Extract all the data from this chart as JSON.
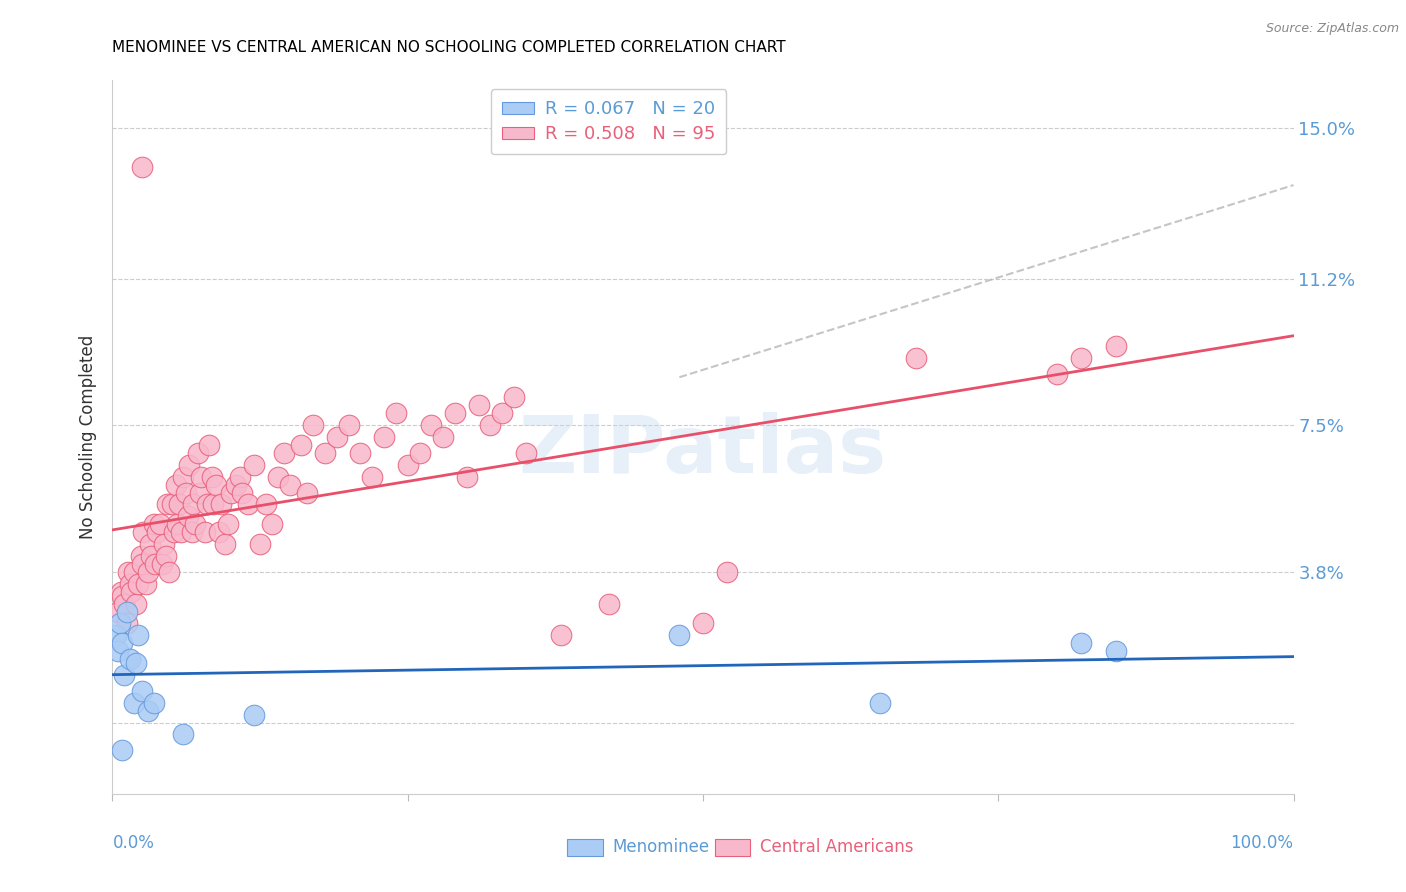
{
  "title": "MENOMINEE VS CENTRAL AMERICAN NO SCHOOLING COMPLETED CORRELATION CHART",
  "source": "Source: ZipAtlas.com",
  "ylabel": "No Schooling Completed",
  "xlim": [
    0.0,
    1.0
  ],
  "ylim": [
    -0.018,
    0.162
  ],
  "yticks": [
    0.0,
    0.038,
    0.075,
    0.112,
    0.15
  ],
  "ytick_labels": [
    "",
    "3.8%",
    "7.5%",
    "11.2%",
    "15.0%"
  ],
  "menominee_color": "#aaccf5",
  "menominee_edge": "#6699dd",
  "central_color": "#f8b8cc",
  "central_edge": "#e8607a",
  "reg_menominee_color": "#2266bb",
  "reg_central_color": "#e8506a",
  "dash_color": "#bbbbbb",
  "legend_text_color": "#5b9bd5",
  "legend_central_color": "#e8607a",
  "legend_label_menominee": "Menominee",
  "legend_label_central": "Central Americans",
  "watermark": "ZIPatlas",
  "menominee_x": [
    0.003,
    0.005,
    0.006,
    0.008,
    0.01,
    0.012,
    0.015,
    0.018,
    0.02,
    0.022,
    0.025,
    0.03,
    0.06,
    0.12,
    0.48,
    0.82,
    0.85,
    0.65,
    0.008,
    0.035
  ],
  "menominee_y": [
    0.022,
    0.018,
    0.025,
    0.02,
    0.012,
    0.028,
    0.016,
    0.005,
    0.015,
    0.022,
    0.008,
    0.003,
    -0.003,
    0.002,
    0.022,
    0.02,
    0.018,
    0.005,
    -0.007,
    0.005
  ],
  "central_x": [
    0.005,
    0.007,
    0.008,
    0.01,
    0.012,
    0.013,
    0.015,
    0.016,
    0.018,
    0.02,
    0.022,
    0.024,
    0.025,
    0.026,
    0.028,
    0.03,
    0.032,
    0.033,
    0.035,
    0.036,
    0.038,
    0.04,
    0.042,
    0.044,
    0.045,
    0.046,
    0.048,
    0.05,
    0.052,
    0.054,
    0.055,
    0.056,
    0.058,
    0.06,
    0.062,
    0.064,
    0.065,
    0.067,
    0.068,
    0.07,
    0.072,
    0.074,
    0.075,
    0.078,
    0.08,
    0.082,
    0.084,
    0.085,
    0.088,
    0.09,
    0.092,
    0.095,
    0.098,
    0.1,
    0.105,
    0.108,
    0.11,
    0.115,
    0.12,
    0.125,
    0.13,
    0.135,
    0.14,
    0.145,
    0.15,
    0.16,
    0.165,
    0.17,
    0.18,
    0.19,
    0.2,
    0.21,
    0.22,
    0.23,
    0.24,
    0.25,
    0.26,
    0.27,
    0.28,
    0.29,
    0.3,
    0.31,
    0.32,
    0.33,
    0.34,
    0.35,
    0.38,
    0.42,
    0.5,
    0.52,
    0.68,
    0.8,
    0.82,
    0.85,
    0.025
  ],
  "central_y": [
    0.028,
    0.033,
    0.032,
    0.03,
    0.025,
    0.038,
    0.035,
    0.033,
    0.038,
    0.03,
    0.035,
    0.042,
    0.04,
    0.048,
    0.035,
    0.038,
    0.045,
    0.042,
    0.05,
    0.04,
    0.048,
    0.05,
    0.04,
    0.045,
    0.042,
    0.055,
    0.038,
    0.055,
    0.048,
    0.06,
    0.05,
    0.055,
    0.048,
    0.062,
    0.058,
    0.052,
    0.065,
    0.048,
    0.055,
    0.05,
    0.068,
    0.058,
    0.062,
    0.048,
    0.055,
    0.07,
    0.062,
    0.055,
    0.06,
    0.048,
    0.055,
    0.045,
    0.05,
    0.058,
    0.06,
    0.062,
    0.058,
    0.055,
    0.065,
    0.045,
    0.055,
    0.05,
    0.062,
    0.068,
    0.06,
    0.07,
    0.058,
    0.075,
    0.068,
    0.072,
    0.075,
    0.068,
    0.062,
    0.072,
    0.078,
    0.065,
    0.068,
    0.075,
    0.072,
    0.078,
    0.062,
    0.08,
    0.075,
    0.078,
    0.082,
    0.068,
    0.022,
    0.03,
    0.025,
    0.038,
    0.092,
    0.088,
    0.092,
    0.095,
    0.14
  ]
}
